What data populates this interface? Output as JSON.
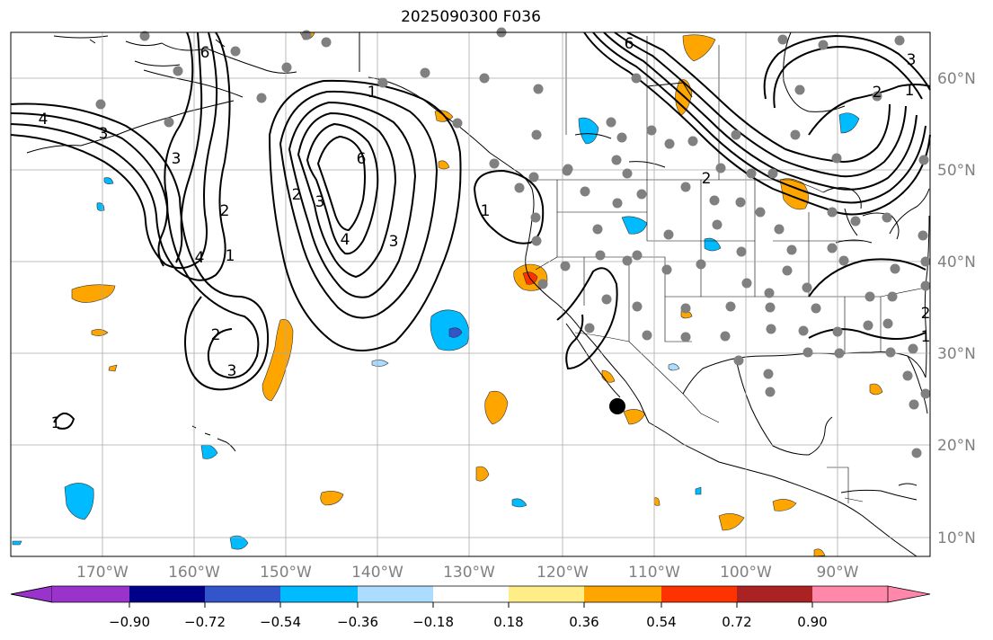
{
  "title": "2025090300 F036",
  "lon_labels": [
    "170°W",
    "160°W",
    "150°W",
    "140°W",
    "130°W",
    "120°W",
    "110°W",
    "100°W",
    "90°W"
  ],
  "lat_labels": [
    "60°N",
    "50°N",
    "40°N",
    "30°N",
    "20°N",
    "10°N"
  ],
  "colorbar": {
    "ticks": [
      "−0.90",
      "−0.72",
      "−0.54",
      "−0.36",
      "−0.18",
      "0.18",
      "0.36",
      "0.54",
      "0.72",
      "0.90"
    ],
    "colors": [
      "#9933cc",
      "#000088",
      "#3355cc",
      "#00bbff",
      "#aaddff",
      "#ffffff",
      "#ffee88",
      "#ffa500",
      "#ff3300",
      "#aa2222",
      "#ff88aa"
    ]
  },
  "contour_labels": [
    {
      "id": "c1",
      "text": "4"
    },
    {
      "id": "c2",
      "text": "3"
    },
    {
      "id": "c3",
      "text": "3"
    },
    {
      "id": "c4",
      "text": "2"
    },
    {
      "id": "c5",
      "text": "1"
    },
    {
      "id": "c6",
      "text": "6"
    },
    {
      "id": "c7",
      "text": "1"
    },
    {
      "id": "c8",
      "text": "6"
    },
    {
      "id": "c9",
      "text": "2"
    },
    {
      "id": "c10",
      "text": "3"
    },
    {
      "id": "c11",
      "text": "4"
    },
    {
      "id": "c12",
      "text": "3"
    },
    {
      "id": "c13",
      "text": "1"
    },
    {
      "id": "c14",
      "text": "2"
    },
    {
      "id": "c15",
      "text": "3"
    },
    {
      "id": "c16",
      "text": "1"
    },
    {
      "id": "c17",
      "text": "6"
    },
    {
      "id": "c18",
      "text": "2"
    },
    {
      "id": "c19",
      "text": "3"
    },
    {
      "id": "c20",
      "text": "2"
    },
    {
      "id": "c21",
      "text": "1"
    },
    {
      "id": "c22",
      "text": "2"
    },
    {
      "id": "c23",
      "text": "1"
    },
    {
      "id": "c24",
      "text": "4"
    }
  ],
  "colors": {
    "grid": "#aaaaaa",
    "axis_label": "#808080",
    "station": "#808080",
    "marker": "#000000"
  }
}
